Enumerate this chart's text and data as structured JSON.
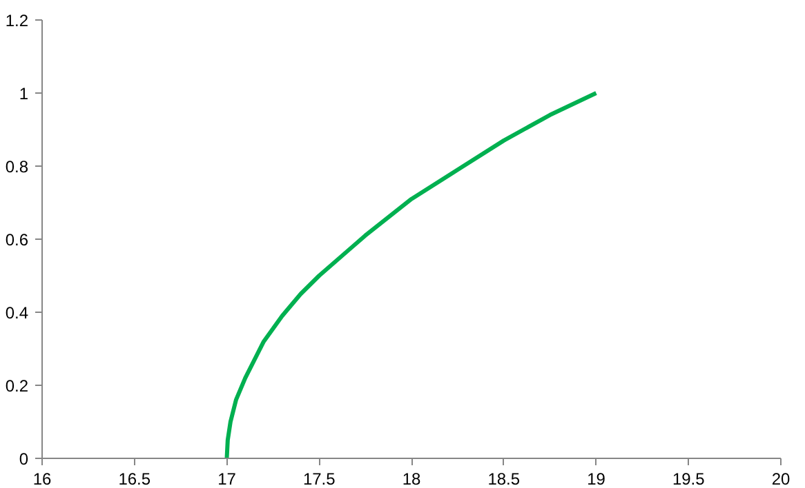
{
  "chart_data": {
    "type": "line",
    "x": [
      17,
      17.005,
      17.02,
      17.05,
      17.1,
      17.2,
      17.3,
      17.4,
      17.5,
      17.75,
      18,
      18.25,
      18.5,
      18.75,
      19
    ],
    "series": [
      {
        "color": "#00b050",
        "values": [
          0,
          0.05,
          0.1,
          0.16,
          0.22,
          0.32,
          0.39,
          0.45,
          0.5,
          0.61,
          0.71,
          0.79,
          0.87,
          0.94,
          1
        ]
      }
    ],
    "xlim": [
      16,
      20
    ],
    "xticks": [
      16,
      16.5,
      17,
      17.5,
      18,
      18.5,
      19,
      19.5,
      20
    ],
    "ylim": [
      0,
      1.2
    ],
    "yticks": [
      0,
      0.2,
      0.4,
      0.6,
      0.8,
      1,
      1.2
    ],
    "grid": false,
    "marker": "none",
    "line_style": "solid"
  }
}
